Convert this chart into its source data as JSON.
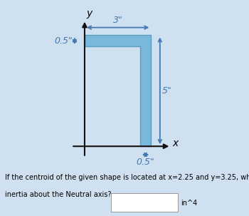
{
  "bg_color": "#cfe0f0",
  "shape_color": "#7ab8db",
  "shape_edge_color": "#5a9ec0",
  "axis_color": "#111111",
  "dim_color": "#4478b0",
  "shape_vertices_x": [
    0.0,
    3.0,
    3.0,
    2.5,
    2.5,
    0.0
  ],
  "shape_vertices_y": [
    5.0,
    5.0,
    0.0,
    0.0,
    4.5,
    4.5
  ],
  "dim_3_label": "3\"",
  "dim_05_left_label": "0.5\"",
  "dim_5_label": "5\"",
  "dim_05_bot_label": "0.5\"",
  "x_label": "x",
  "y_label": "y",
  "question_line1": "If the centroid of the given shape is located at x=2.25 and y=3.25, what is the moment if",
  "question_line2": "inertia about the Neutral axis?",
  "unit_label": "in^4",
  "font_size_dims": 9,
  "font_size_axis_labels": 10,
  "font_size_question": 7
}
